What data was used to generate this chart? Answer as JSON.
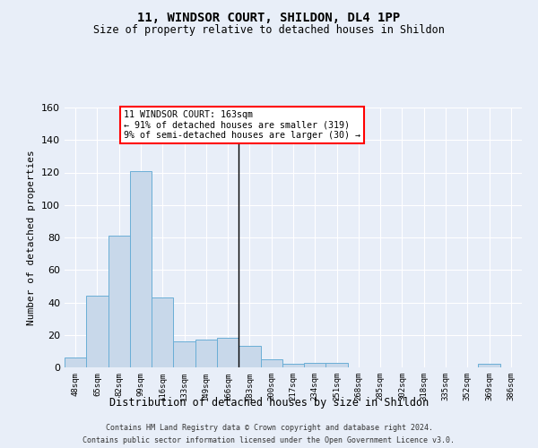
{
  "title": "11, WINDSOR COURT, SHILDON, DL4 1PP",
  "subtitle": "Size of property relative to detached houses in Shildon",
  "xlabel": "Distribution of detached houses by size in Shildon",
  "ylabel": "Number of detached properties",
  "bar_color": "#c8d8ea",
  "bar_edge_color": "#6aaed6",
  "bg_color": "#e8eef8",
  "grid_color": "#ffffff",
  "fig_color": "#e8eef8",
  "categories": [
    "48sqm",
    "65sqm",
    "82sqm",
    "99sqm",
    "116sqm",
    "133sqm",
    "149sqm",
    "166sqm",
    "183sqm",
    "200sqm",
    "217sqm",
    "234sqm",
    "251sqm",
    "268sqm",
    "285sqm",
    "302sqm",
    "318sqm",
    "335sqm",
    "352sqm",
    "369sqm",
    "386sqm"
  ],
  "values": [
    6,
    44,
    81,
    121,
    43,
    16,
    17,
    18,
    13,
    5,
    2,
    3,
    3,
    0,
    0,
    0,
    0,
    0,
    0,
    2,
    0
  ],
  "ylim": [
    0,
    160
  ],
  "yticks": [
    0,
    20,
    40,
    60,
    80,
    100,
    120,
    140,
    160
  ],
  "annotation_title": "11 WINDSOR COURT: 163sqm",
  "annotation_line1": "← 91% of detached houses are smaller (319)",
  "annotation_line2": "9% of semi-detached houses are larger (30) →",
  "footer1": "Contains HM Land Registry data © Crown copyright and database right 2024.",
  "footer2": "Contains public sector information licensed under the Open Government Licence v3.0.",
  "vline_color": "#000000",
  "vline_x": 7.5
}
